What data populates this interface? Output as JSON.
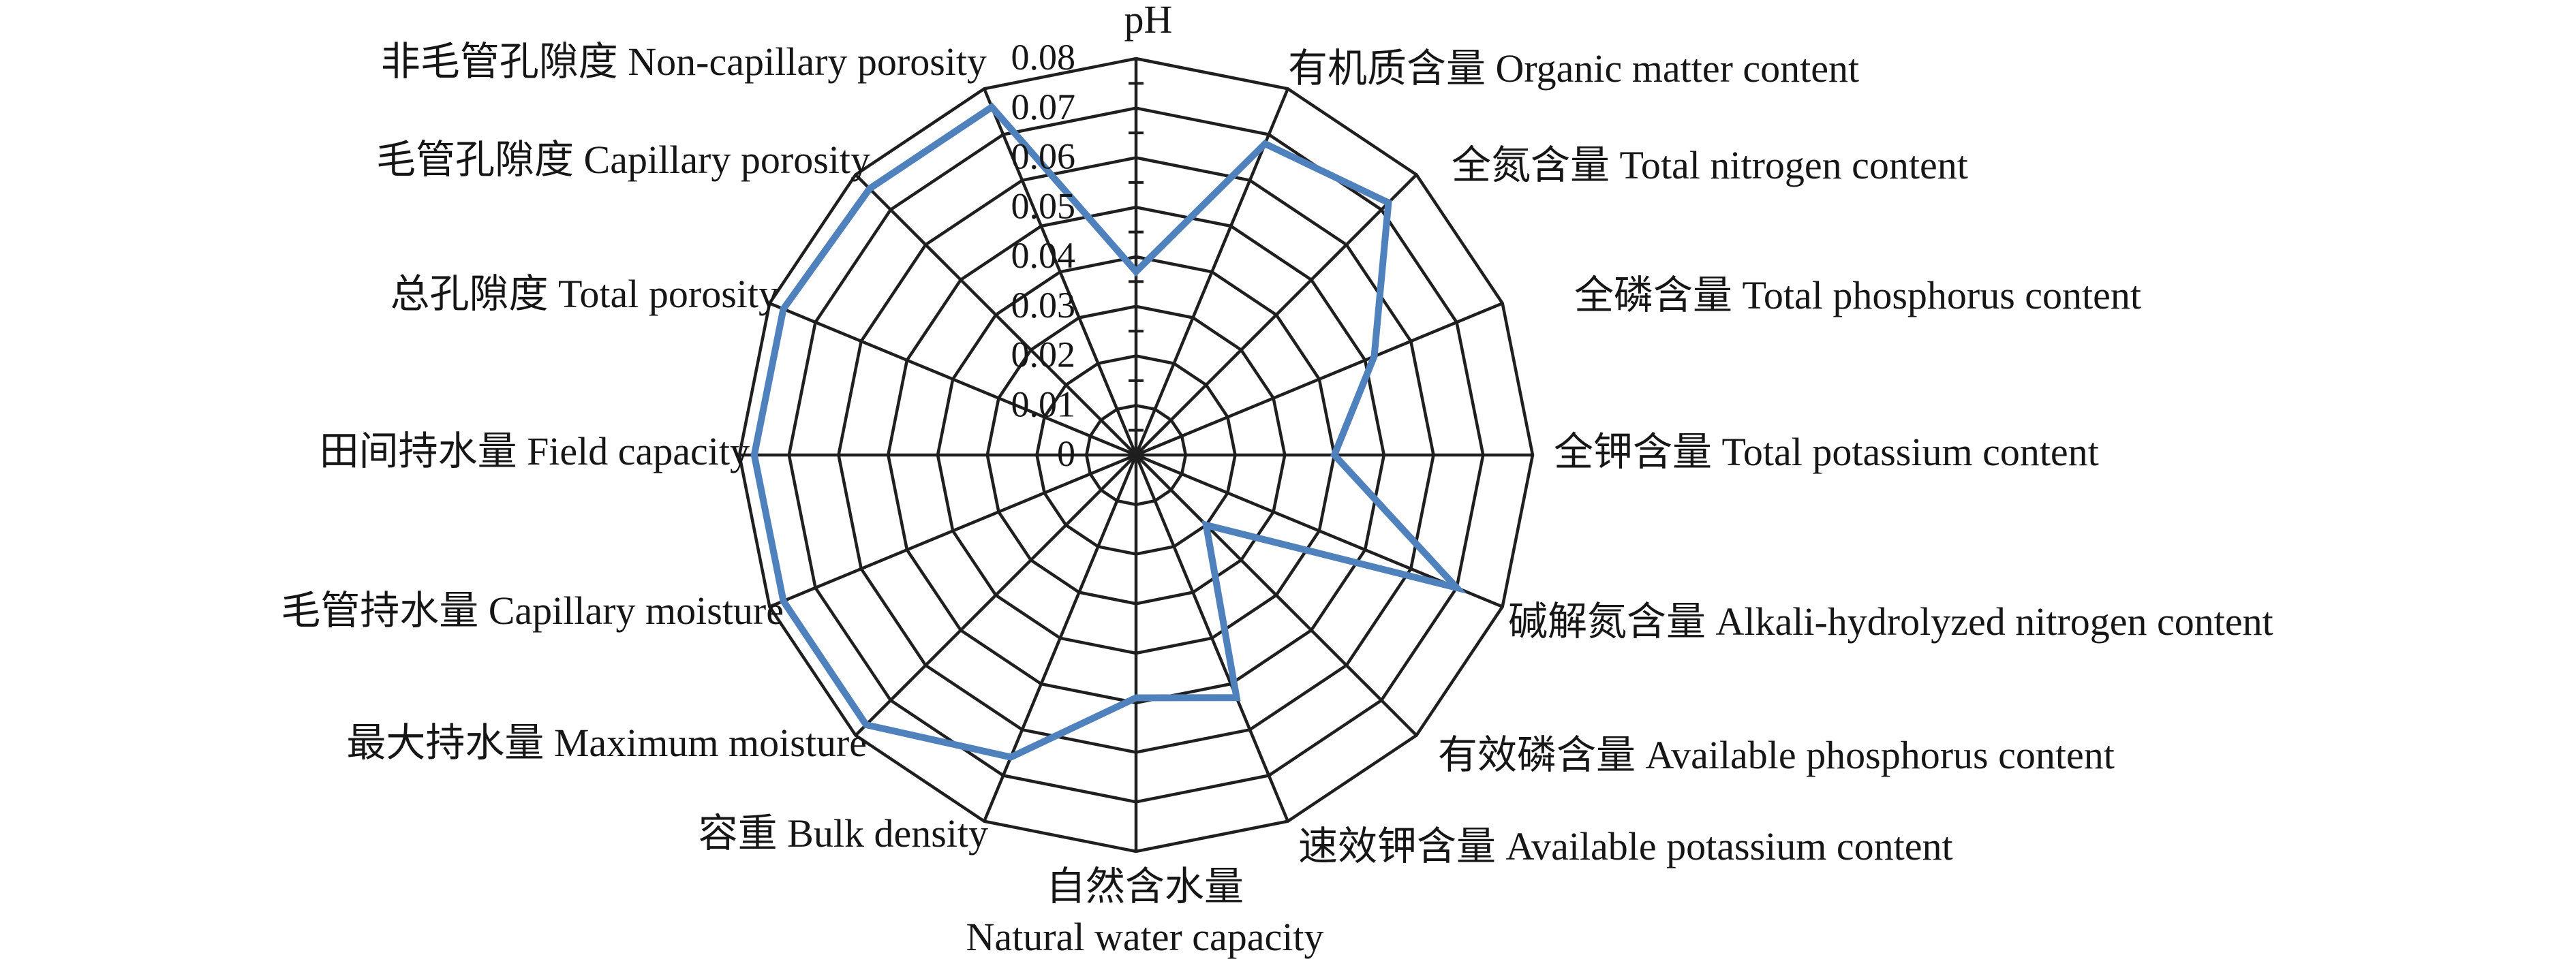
{
  "chart_data": {
    "type": "radar",
    "title": "",
    "categories": [
      "pH",
      "有机质含量 Organic matter content",
      "全氮含量 Total nitrogen content",
      "全磷含量 Total phosphorus content",
      "全钾含量 Total potassium content",
      "碱解氮含量 Alkali-hydrolyzed nitrogen content",
      "有效磷含量 Available phosphorus content",
      "速效钾含量 Available potassium content",
      "自然含水量 Natural water capacity",
      "容重 Bulk density",
      "最大持水量 Maximum moisture",
      "毛管持水量 Capillary moisture",
      "田间持水量 Field capacity",
      "总孔隙度 Total porosity",
      "毛管孔隙度 Capillary porosity",
      "非毛管孔隙度 Non-capillary porosity"
    ],
    "series": [
      {
        "name": "",
        "values": [
          0.037,
          0.068,
          0.072,
          0.052,
          0.04,
          0.07,
          0.02,
          0.053,
          0.049,
          0.066,
          0.077,
          0.077,
          0.077,
          0.077,
          0.076,
          0.076
        ]
      }
    ],
    "rlim": [
      0,
      0.08
    ],
    "tick_step": 0.01,
    "ticks": [
      "0",
      "0.01",
      "0.02",
      "0.03",
      "0.04",
      "0.05",
      "0.06",
      "0.07",
      "0.08"
    ],
    "grid": "polygon-rings-16-spokes",
    "legend": "none",
    "line_color": "#4F81BD",
    "grid_color": "#1f1f1f"
  },
  "axes": [
    {
      "cjk": "",
      "en": "pH",
      "two_line": false
    },
    {
      "cjk": "有机质含量",
      "en": "Organic matter content",
      "two_line": false
    },
    {
      "cjk": "全氮含量",
      "en": "Total nitrogen content",
      "two_line": false
    },
    {
      "cjk": "全磷含量",
      "en": "Total phosphorus content",
      "two_line": false
    },
    {
      "cjk": "全钾含量",
      "en": "Total potassium content",
      "two_line": false
    },
    {
      "cjk": "碱解氮含量",
      "en": "Alkali-hydrolyzed nitrogen content",
      "two_line": false
    },
    {
      "cjk": "有效磷含量",
      "en": "Available phosphorus content",
      "two_line": false
    },
    {
      "cjk": "速效钾含量",
      "en": "Available potassium content",
      "two_line": false
    },
    {
      "cjk": "自然含水量",
      "en": "Natural water capacity",
      "two_line": true
    },
    {
      "cjk": "容重",
      "en": "Bulk density",
      "two_line": false
    },
    {
      "cjk": "最大持水量",
      "en": "Maximum moisture",
      "two_line": false
    },
    {
      "cjk": "毛管持水量",
      "en": "Capillary moisture",
      "two_line": false
    },
    {
      "cjk": "田间持水量",
      "en": "Field capacity",
      "two_line": false
    },
    {
      "cjk": "总孔隙度",
      "en": "Total porosity",
      "two_line": false
    },
    {
      "cjk": "毛管孔隙度",
      "en": "Capillary porosity",
      "two_line": false
    },
    {
      "cjk": "非毛管孔隙度",
      "en": "Non-capillary porosity",
      "two_line": false
    }
  ]
}
